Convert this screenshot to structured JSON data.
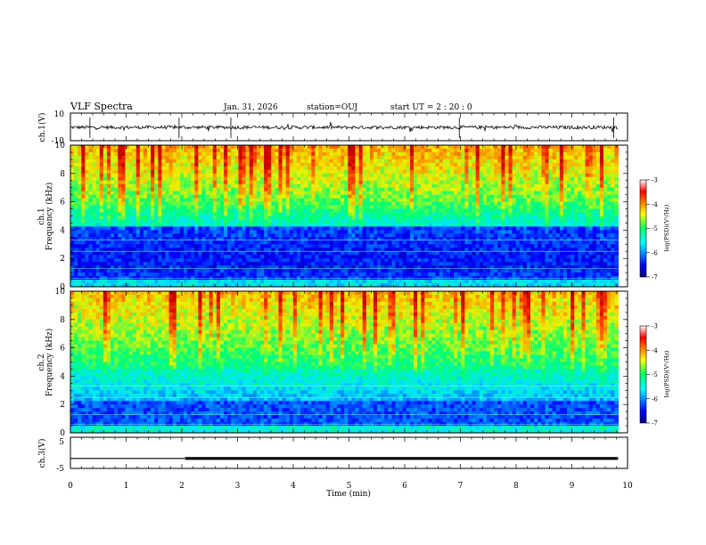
{
  "header": {
    "title": "VLF Spectra",
    "date": "Jan. 31, 2026",
    "station": "station=OUJ",
    "start_ut": "start UT =  2 : 20 : 0"
  },
  "chart_data": [
    {
      "type": "line",
      "panel": "ch1-waveform",
      "ylabel": "ch.1(V)",
      "ylim": [
        -10,
        10
      ],
      "yticks": [
        "10",
        "-10"
      ],
      "xlim": [
        0,
        10
      ],
      "description_values": {
        "baseline": 0,
        "noise_amplitude": 1.5,
        "data_end_min": 9.83
      }
    },
    {
      "type": "heatmap",
      "panel": "ch1-spectrogram",
      "ylabel": "Frequency (kHz)",
      "ylabel_prefix": "ch.1",
      "ylim": [
        0,
        10
      ],
      "yticks": [
        "0",
        "2",
        "4",
        "6",
        "8",
        "10"
      ],
      "xlim": [
        0,
        10
      ],
      "colorbar": {
        "label": "log(PSD)(V²/Hz)",
        "range": [
          -7,
          -3
        ],
        "ticks": [
          "-3",
          "-4",
          "-5",
          "-6",
          "-7"
        ]
      }
    },
    {
      "type": "heatmap",
      "panel": "ch2-spectrogram",
      "ylabel": "Frequency (kHz)",
      "ylabel_prefix": "ch.2",
      "ylim": [
        0,
        10
      ],
      "yticks": [
        "0",
        "2",
        "4",
        "6",
        "8",
        "10"
      ],
      "xlim": [
        0,
        10
      ],
      "colorbar": {
        "label": "log(PSD)(V²/Hz)",
        "range": [
          -7,
          -3
        ],
        "ticks": [
          "-3",
          "-4",
          "-5",
          "-6",
          "-7"
        ]
      }
    },
    {
      "type": "line",
      "panel": "ch3-waveform",
      "ylabel": "ch.3(V)",
      "ylim": [
        -5,
        5
      ],
      "yticks": [
        "5",
        "-5"
      ],
      "xlim": [
        0,
        10
      ],
      "x": [
        0,
        2.06,
        2.06,
        9.83
      ],
      "y": [
        -1.8,
        -1.8,
        -1.8,
        -1.8
      ],
      "line_widths": {
        "before_2.06": "thin",
        "after_2.06": "thick"
      }
    }
  ],
  "xaxis": {
    "label": "Time (min)",
    "ticks": [
      "0",
      "1",
      "2",
      "3",
      "4",
      "5",
      "6",
      "7",
      "8",
      "9",
      "10"
    ]
  }
}
